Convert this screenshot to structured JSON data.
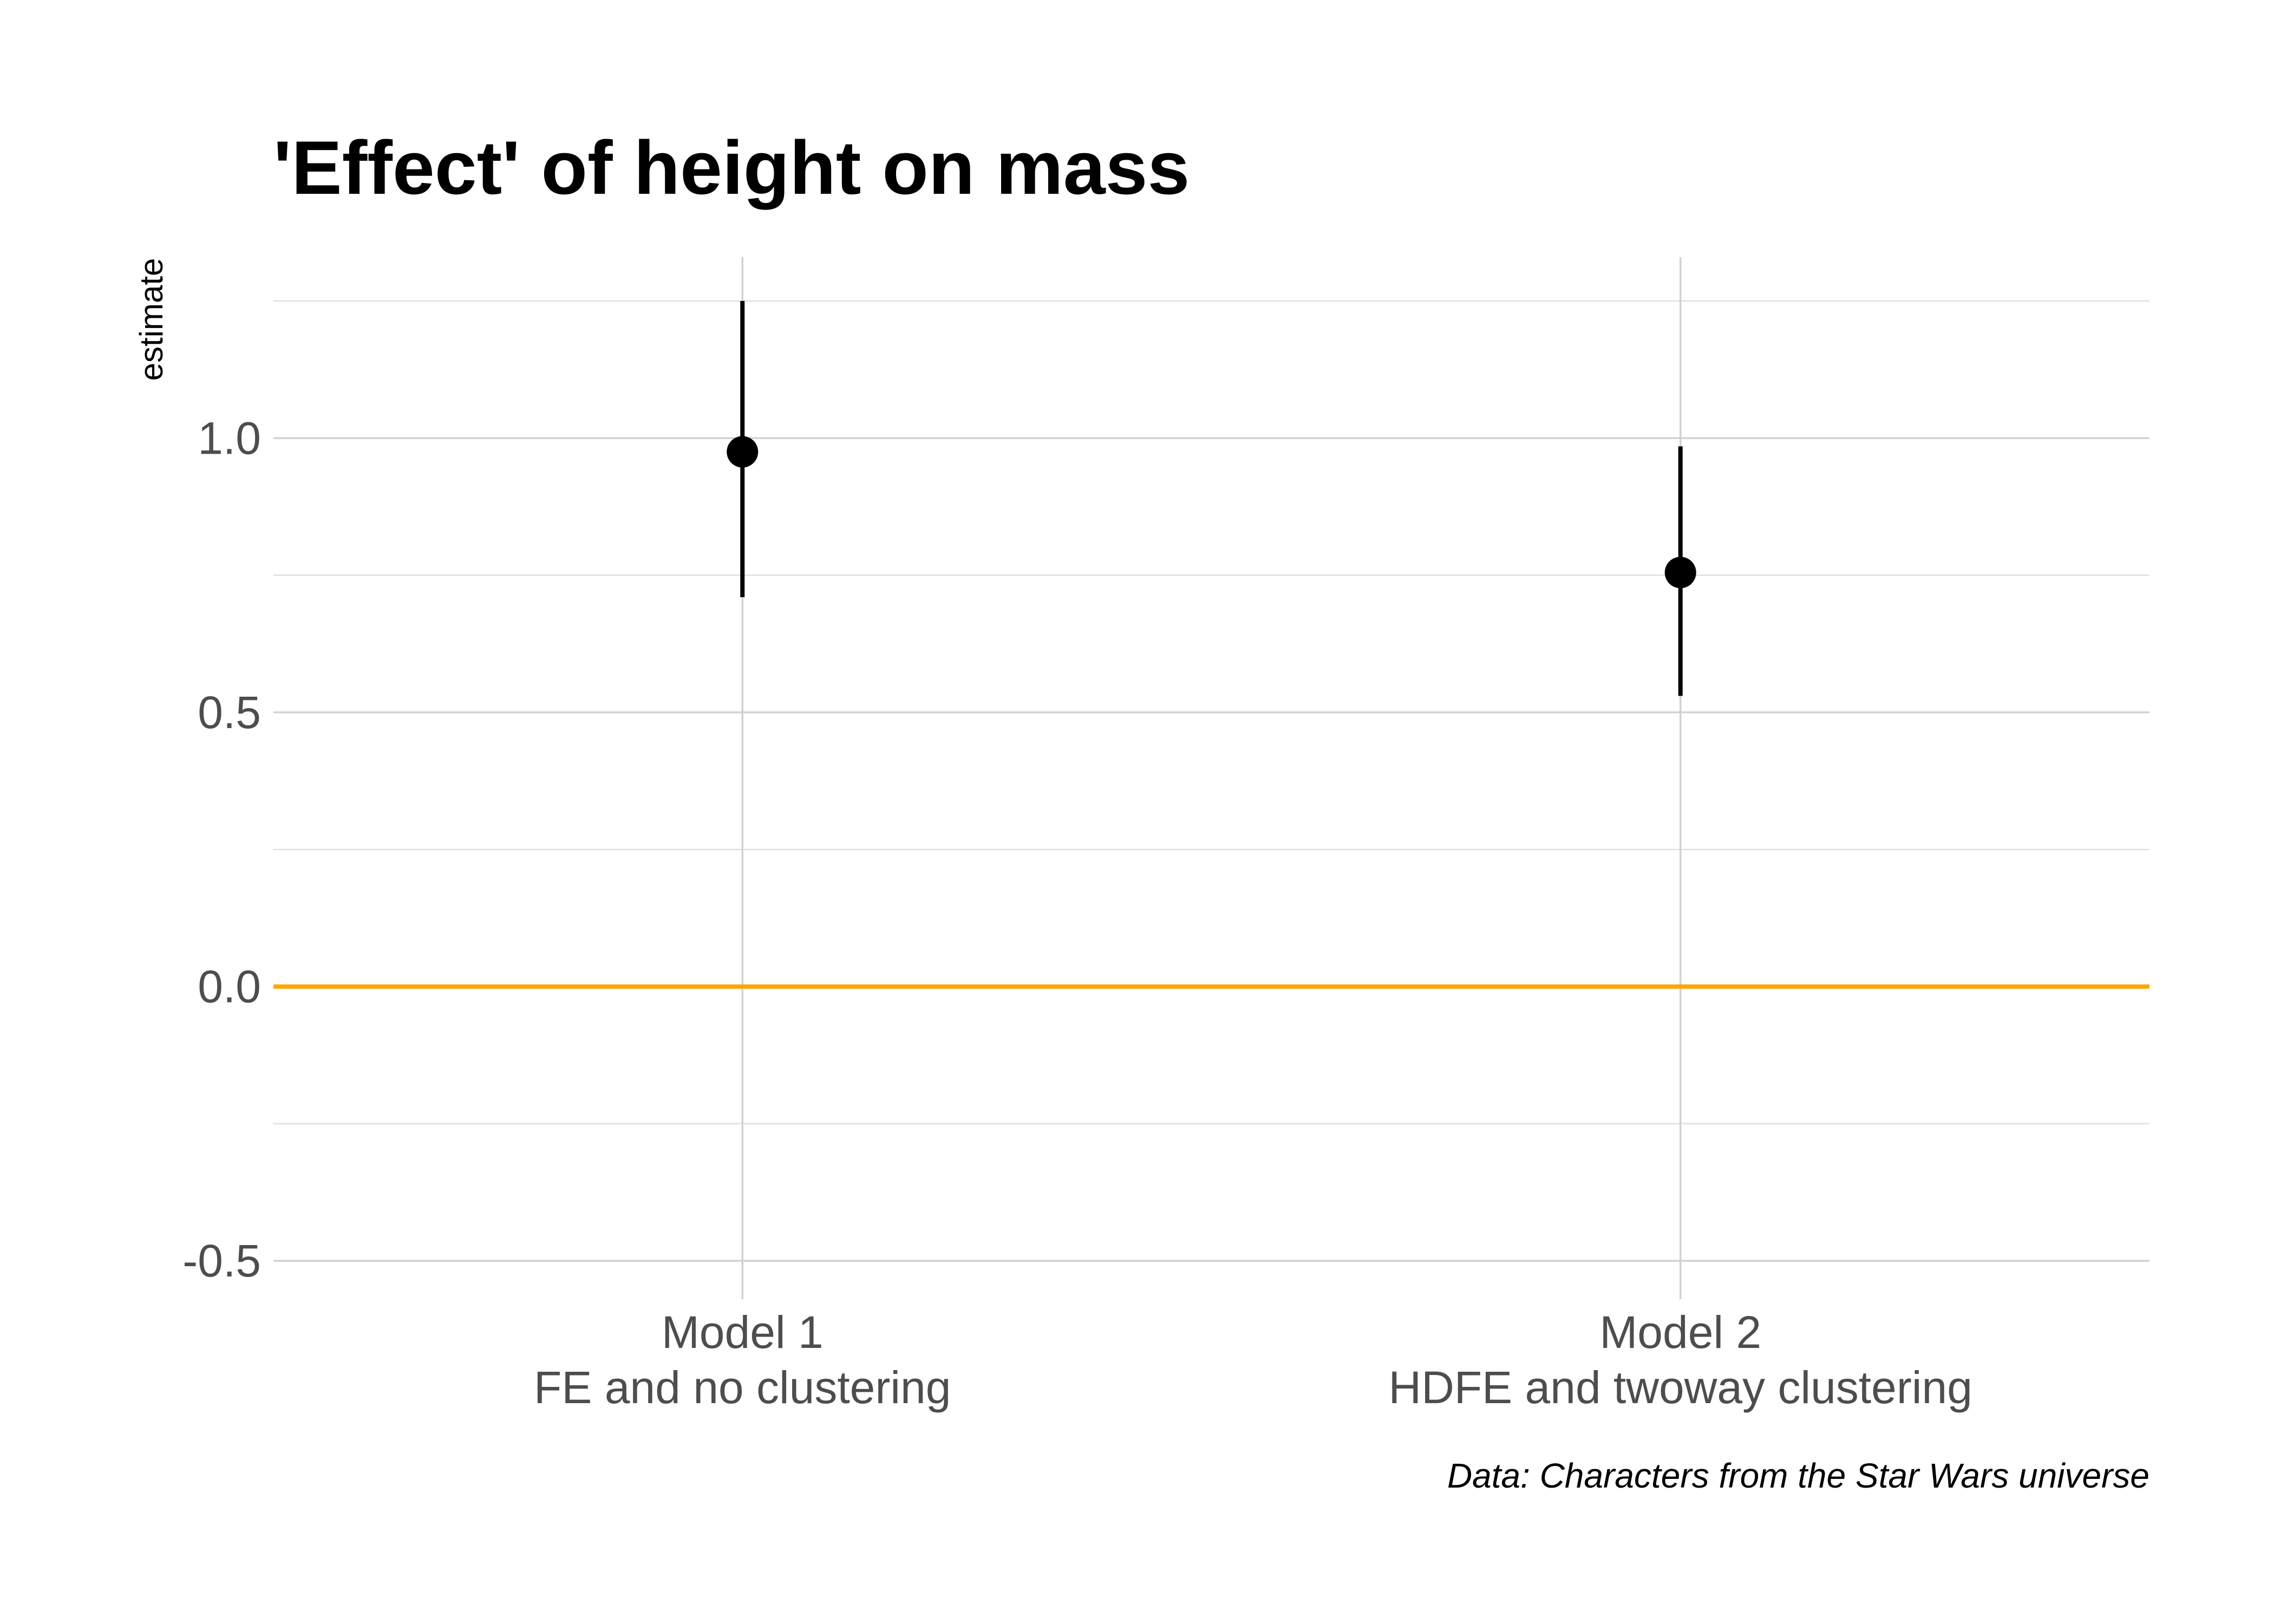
{
  "chart_data": {
    "type": "scatter",
    "title": "'Effect' of height on mass",
    "ylabel": "estimate",
    "xlabel": "",
    "caption": "Data: Characters from the Star Wars universe",
    "categories": [
      {
        "line1": "Model 1",
        "line2": "FE and no clustering"
      },
      {
        "line1": "Model 2",
        "line2": "HDFE and twoway clustering"
      }
    ],
    "estimates": [
      0.975,
      0.755
    ],
    "conf_low": [
      0.71,
      0.53
    ],
    "conf_high": [
      1.25,
      0.985
    ],
    "yticks": [
      -0.5,
      0.0,
      0.5,
      1.0
    ],
    "ytick_labels": [
      "-0.5",
      "0.0",
      "0.5",
      "1.0"
    ],
    "ylim": [
      -0.57,
      1.33
    ],
    "reference_line": {
      "y": 0,
      "color": "#ffa500"
    },
    "grid": true,
    "point_color": "#000000"
  }
}
